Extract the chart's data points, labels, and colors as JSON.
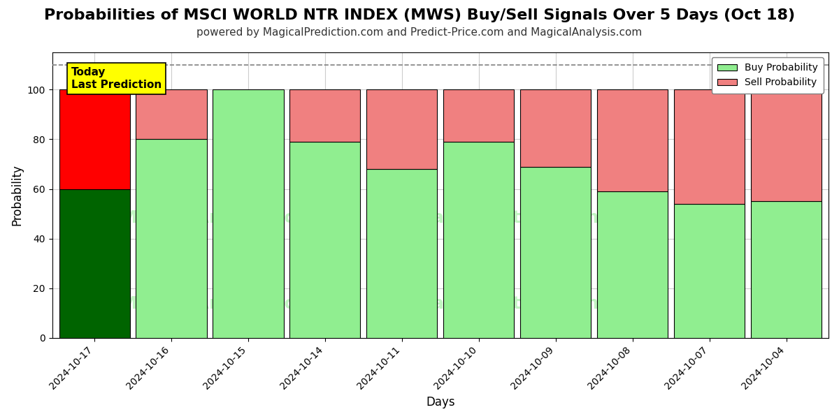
{
  "title": "Probabilities of MSCI WORLD NTR INDEX (MWS) Buy/Sell Signals Over 5 Days (Oct 18)",
  "subtitle": "powered by MagicalPrediction.com and Predict-Price.com and MagicalAnalysis.com",
  "xlabel": "Days",
  "ylabel": "Probability",
  "dates": [
    "2024-10-17",
    "2024-10-16",
    "2024-10-15",
    "2024-10-14",
    "2024-10-11",
    "2024-10-10",
    "2024-10-09",
    "2024-10-08",
    "2024-10-07",
    "2024-10-04"
  ],
  "buy_probs": [
    60,
    80,
    100,
    79,
    68,
    79,
    69,
    59,
    54,
    55
  ],
  "sell_probs": [
    40,
    20,
    0,
    21,
    32,
    21,
    31,
    41,
    46,
    45
  ],
  "today_buy_color": "#006400",
  "today_sell_color": "#FF0000",
  "buy_color": "#90EE90",
  "sell_color": "#F08080",
  "bar_edge_color": "#000000",
  "ylim": [
    0,
    115
  ],
  "yticks": [
    0,
    20,
    40,
    60,
    80,
    100
  ],
  "dashed_line_y": 110,
  "today_label": "Today\nLast Prediction",
  "today_label_bg": "#FFFF00",
  "legend_buy_label": "Buy Probability",
  "legend_sell_label": "Sell Probability",
  "watermark_color": "#90EE90",
  "watermark_alpha": 0.55,
  "grid_color": "#CCCCCC",
  "background_color": "#FFFFFF",
  "title_fontsize": 16,
  "subtitle_fontsize": 11,
  "bar_width": 0.92
}
